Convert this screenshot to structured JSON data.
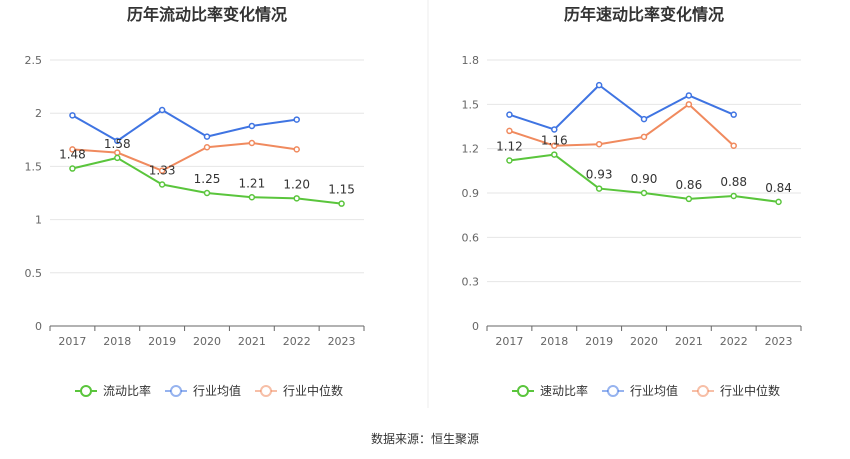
{
  "footer": {
    "source": "数据来源：恒生聚源"
  },
  "colors": {
    "company": "#5ac53c",
    "industry_avg": "#3f74e2",
    "industry_median": "#f08a5e"
  },
  "chart_data": [
    {
      "type": "line",
      "title": "历年流动比率变化情况",
      "categories": [
        "2017",
        "2018",
        "2019",
        "2020",
        "2021",
        "2022",
        "2023"
      ],
      "ylim": [
        0,
        2.5
      ],
      "yticks": [
        "0",
        "0.5",
        "1",
        "1.5",
        "2",
        "2.5"
      ],
      "grid": true,
      "legend": "bottom",
      "series": [
        {
          "name": "流动比率",
          "color_key": "company",
          "values": [
            1.48,
            1.58,
            1.33,
            1.25,
            1.21,
            1.2,
            1.15
          ],
          "labels": [
            "1.48",
            "1.58",
            "1.33",
            "1.25",
            "1.21",
            "1.20",
            "1.15"
          ]
        },
        {
          "name": "行业均值",
          "color_key": "industry_avg",
          "values": [
            1.98,
            1.74,
            2.03,
            1.78,
            1.88,
            1.94,
            null
          ]
        },
        {
          "name": "行业中位数",
          "color_key": "industry_median",
          "values": [
            1.66,
            1.63,
            1.46,
            1.68,
            1.72,
            1.66,
            null
          ]
        }
      ]
    },
    {
      "type": "line",
      "title": "历年速动比率变化情况",
      "categories": [
        "2017",
        "2018",
        "2019",
        "2020",
        "2021",
        "2022",
        "2023"
      ],
      "ylim": [
        0,
        1.8
      ],
      "yticks": [
        "0",
        "0.3",
        "0.6",
        "0.9",
        "1.2",
        "1.5",
        "1.8"
      ],
      "grid": true,
      "legend": "bottom",
      "series": [
        {
          "name": "速动比率",
          "color_key": "company",
          "values": [
            1.12,
            1.16,
            0.93,
            0.9,
            0.86,
            0.88,
            0.84
          ],
          "labels": [
            "1.12",
            "1.16",
            "0.93",
            "0.90",
            "0.86",
            "0.88",
            "0.84"
          ]
        },
        {
          "name": "行业均值",
          "color_key": "industry_avg",
          "values": [
            1.43,
            1.33,
            1.63,
            1.4,
            1.56,
            1.43,
            null
          ]
        },
        {
          "name": "行业中位数",
          "color_key": "industry_median",
          "values": [
            1.32,
            1.22,
            1.23,
            1.28,
            1.5,
            1.22,
            null
          ]
        }
      ]
    }
  ]
}
